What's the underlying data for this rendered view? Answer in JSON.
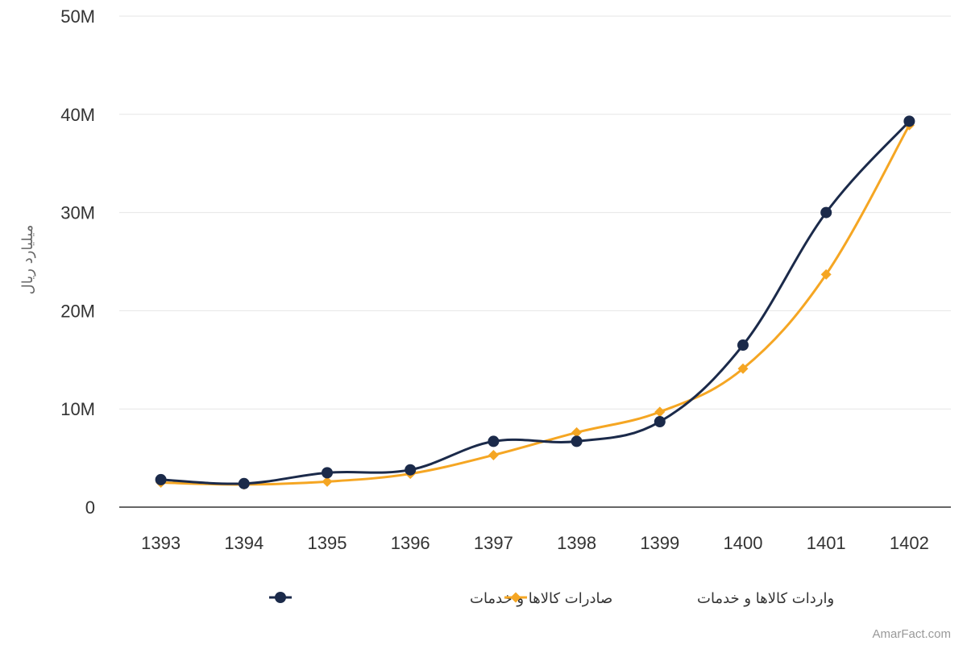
{
  "chart_data": {
    "type": "line",
    "title": "",
    "xlabel": "",
    "ylabel": "میلیارد ریال",
    "categories": [
      "1393",
      "1394",
      "1395",
      "1396",
      "1397",
      "1398",
      "1399",
      "1400",
      "1401",
      "1402"
    ],
    "ylim": [
      0,
      50000000
    ],
    "y_ticks": [
      0,
      10000000,
      20000000,
      30000000,
      40000000,
      50000000
    ],
    "y_tick_labels": [
      "0",
      "10M",
      "20M",
      "30M",
      "40M",
      "50M"
    ],
    "grid": true,
    "legend_position": "bottom",
    "smooth": true,
    "series": [
      {
        "name": "صادرات کالاها و خدمات",
        "color": "#1b2a4a",
        "marker": "circle",
        "values": [
          2800000,
          2400000,
          3500000,
          3800000,
          6700000,
          6700000,
          8700000,
          16500000,
          30000000,
          39300000
        ]
      },
      {
        "name": "واردات کالاها و خدمات",
        "color": "#f5a623",
        "marker": "diamond",
        "values": [
          2500000,
          2300000,
          2600000,
          3400000,
          5300000,
          7600000,
          9700000,
          14100000,
          23700000,
          38900000
        ]
      }
    ]
  },
  "credit": "AmarFact.com"
}
